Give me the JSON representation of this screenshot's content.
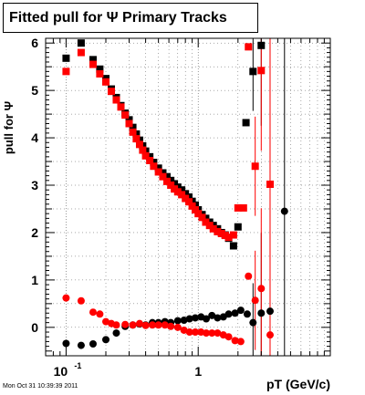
{
  "window_title": "Fitted pull for  Ψ   Primary Tracks",
  "timestamp": "Mon Oct 31 10:39:39 2011",
  "colors": {
    "black_series": "#000000",
    "red_series": "#ff0000",
    "grid": "#555555"
  },
  "chart_data": {
    "type": "scatter",
    "title": "Fitted pull for  Ψ   Primary Tracks",
    "xlabel": "pT (GeV/c)",
    "ylabel": "pull for Ψ",
    "xscale": "log",
    "xlim": [
      0.07,
      10
    ],
    "ylim": [
      -0.6,
      6.1
    ],
    "grid": true,
    "x_ticks": [
      {
        "value": 0.1,
        "label": "10",
        "exponent": "-1"
      },
      {
        "value": 1,
        "label": "1",
        "exponent": ""
      }
    ],
    "y_ticks": [
      {
        "value": 0,
        "label": "0"
      },
      {
        "value": 1,
        "label": "1"
      },
      {
        "value": 2,
        "label": "2"
      },
      {
        "value": 3,
        "label": "3"
      },
      {
        "value": 4,
        "label": "4"
      },
      {
        "value": 5,
        "label": "5"
      },
      {
        "value": 6,
        "label": "6"
      }
    ],
    "series": [
      {
        "color": "#000000",
        "marker": "square",
        "x": [
          0.1,
          0.13,
          0.16,
          0.18,
          0.2,
          0.22,
          0.24,
          0.26,
          0.28,
          0.3,
          0.32,
          0.34,
          0.36,
          0.38,
          0.4,
          0.43,
          0.46,
          0.5,
          0.54,
          0.58,
          0.62,
          0.66,
          0.7,
          0.75,
          0.8,
          0.85,
          0.9,
          0.95,
          1.0,
          1.07,
          1.14,
          1.22,
          1.3,
          1.4,
          1.5,
          1.6,
          1.7,
          1.85,
          2.0,
          2.3,
          2.6,
          3.0
        ],
        "y": [
          5.68,
          6.0,
          5.65,
          5.45,
          5.25,
          5.03,
          4.85,
          4.68,
          4.52,
          4.38,
          4.22,
          4.08,
          3.95,
          3.83,
          3.72,
          3.6,
          3.48,
          3.36,
          3.26,
          3.18,
          3.1,
          3.03,
          2.96,
          2.9,
          2.82,
          2.75,
          2.66,
          2.58,
          2.48,
          2.38,
          2.3,
          2.22,
          2.15,
          2.08,
          2.0,
          1.95,
          1.88,
          1.72,
          2.12,
          4.32,
          5.4,
          5.95
        ]
      },
      {
        "color": "#ff0000",
        "marker": "square",
        "x": [
          0.1,
          0.13,
          0.16,
          0.18,
          0.2,
          0.22,
          0.24,
          0.26,
          0.28,
          0.3,
          0.32,
          0.34,
          0.36,
          0.38,
          0.4,
          0.43,
          0.46,
          0.5,
          0.54,
          0.58,
          0.62,
          0.66,
          0.7,
          0.75,
          0.8,
          0.85,
          0.9,
          0.95,
          1.0,
          1.07,
          1.14,
          1.22,
          1.3,
          1.4,
          1.5,
          1.6,
          1.7,
          1.85,
          2.0,
          2.2,
          2.4,
          2.7,
          3.0,
          3.5
        ],
        "y": [
          5.4,
          5.8,
          5.55,
          5.35,
          5.18,
          4.98,
          4.8,
          4.65,
          4.48,
          4.3,
          4.12,
          3.98,
          3.86,
          3.74,
          3.62,
          3.52,
          3.4,
          3.28,
          3.18,
          3.08,
          3.0,
          2.92,
          2.86,
          2.8,
          2.72,
          2.65,
          2.56,
          2.48,
          2.4,
          2.32,
          2.22,
          2.15,
          2.08,
          2.02,
          1.98,
          1.94,
          1.9,
          1.95,
          2.52,
          2.52,
          5.92,
          3.4,
          5.42,
          3.02
        ]
      },
      {
        "color": "#000000",
        "marker": "circle",
        "x": [
          0.1,
          0.13,
          0.16,
          0.2,
          0.24,
          0.28,
          0.32,
          0.36,
          0.4,
          0.45,
          0.5,
          0.56,
          0.62,
          0.7,
          0.78,
          0.86,
          0.95,
          1.05,
          1.15,
          1.27,
          1.4,
          1.55,
          1.7,
          1.9,
          2.1,
          2.35,
          2.6,
          3.0,
          3.5,
          4.5
        ],
        "y": [
          -0.34,
          -0.38,
          -0.35,
          -0.26,
          -0.12,
          0.02,
          0.05,
          0.07,
          0.05,
          0.1,
          0.1,
          0.12,
          0.1,
          0.14,
          0.15,
          0.18,
          0.2,
          0.22,
          0.18,
          0.25,
          0.2,
          0.22,
          0.28,
          0.3,
          0.36,
          0.28,
          0.1,
          0.3,
          0.34,
          2.45
        ]
      },
      {
        "color": "#ff0000",
        "marker": "circle",
        "x": [
          0.1,
          0.13,
          0.16,
          0.18,
          0.2,
          0.22,
          0.24,
          0.28,
          0.32,
          0.36,
          0.4,
          0.45,
          0.5,
          0.56,
          0.62,
          0.7,
          0.78,
          0.86,
          0.95,
          1.05,
          1.15,
          1.27,
          1.4,
          1.55,
          1.7,
          1.9,
          2.1,
          2.4,
          2.7,
          3.0,
          3.5
        ],
        "y": [
          0.62,
          0.56,
          0.32,
          0.28,
          0.12,
          0.08,
          0.05,
          0.06,
          0.05,
          0.08,
          0.04,
          0.05,
          0.05,
          0.05,
          0.02,
          0.0,
          -0.06,
          -0.1,
          -0.1,
          -0.1,
          -0.12,
          -0.12,
          -0.12,
          -0.16,
          -0.2,
          -0.28,
          -0.3,
          1.08,
          0.57,
          0.82,
          -0.16
        ]
      }
    ]
  }
}
